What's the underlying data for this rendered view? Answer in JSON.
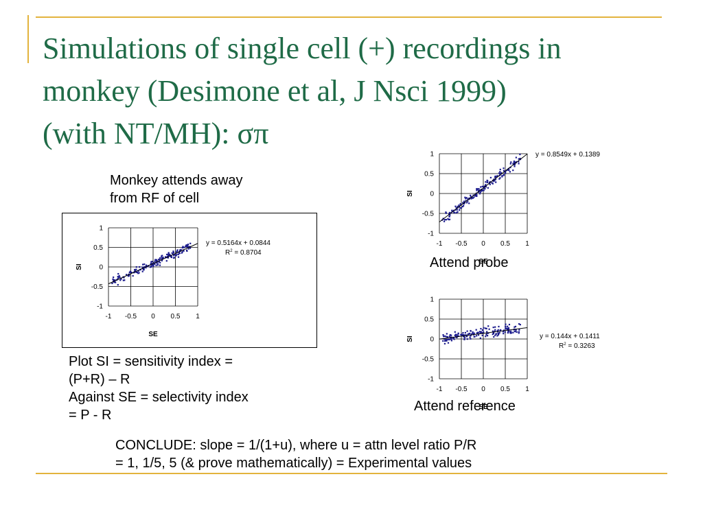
{
  "slide": {
    "title_lines": [
      "Simulations of single cell (+) recordings in",
      "monkey (Desimone et al, J Nsci 1999)",
      "(with NT/MH): σπ"
    ],
    "away_label_lines": [
      "Monkey attends away",
      "from RF of cell"
    ],
    "plot_def_lines": [
      "Plot SI = sensitivity index =",
      "(P+R) – R",
      "Against SE = selectivity index",
      "= P - R"
    ],
    "conclude_lines": [
      "CONCLUDE: slope = 1/(1+u), where u = attn level ratio P/R",
      "= 1, 1/5, 5 (& prove mathematically) = Experimental values"
    ],
    "accent_color": "#e3b33c",
    "title_color": "#1f6b47",
    "marker_color": "#1a1a8c"
  },
  "chart_data": [
    {
      "type": "scatter",
      "caption": "",
      "xlabel": "SE",
      "ylabel": "SI",
      "xlim": [
        -1,
        1
      ],
      "ylim": [
        -1,
        1
      ],
      "xticks": [
        "-1",
        "-0.5",
        "0",
        "0.5",
        "1"
      ],
      "yticks": [
        "1",
        "0.5",
        "0",
        "-0.5",
        "-1"
      ],
      "grid": true,
      "legend": "none",
      "trendline": {
        "slope": 0.5164,
        "intercept": 0.0844
      },
      "equation": "y = 0.5164x + 0.0844",
      "r2_label": "R",
      "r2_value": " = 0.8704",
      "spread": 0.05,
      "seed": 11,
      "n_points": 170
    },
    {
      "type": "scatter",
      "caption": "Attend probe",
      "xlabel": "SE",
      "ylabel": "SI",
      "xlim": [
        -1,
        1
      ],
      "ylim": [
        -1,
        1
      ],
      "xticks": [
        "-1",
        "-0.5",
        "0",
        "0.5",
        "1"
      ],
      "yticks": [
        "1",
        "0.5",
        "0",
        "-0.5",
        "-1"
      ],
      "grid": true,
      "legend": "none",
      "trendline": {
        "slope": 0.8549,
        "intercept": 0.1389
      },
      "equation": "y = 0.8549x + 0.1389",
      "r2_label": "",
      "r2_value": "",
      "spread": 0.06,
      "seed": 23,
      "n_points": 170
    },
    {
      "type": "scatter",
      "caption": "Attend reference",
      "xlabel": "SE",
      "ylabel": "SI",
      "xlim": [
        -1,
        1
      ],
      "ylim": [
        -1,
        1
      ],
      "xticks": [
        "-1",
        "-0.5",
        "0",
        "0.5",
        "1"
      ],
      "yticks": [
        "1",
        "0.5",
        "0",
        "-0.5",
        "-1"
      ],
      "grid": true,
      "legend": "none",
      "trendline": {
        "slope": 0.144,
        "intercept": 0.1411
      },
      "equation": "y = 0.144x + 0.1411",
      "r2_label": "R",
      "r2_value": " = 0.3263",
      "spread": 0.06,
      "seed": 37,
      "n_points": 170
    }
  ]
}
